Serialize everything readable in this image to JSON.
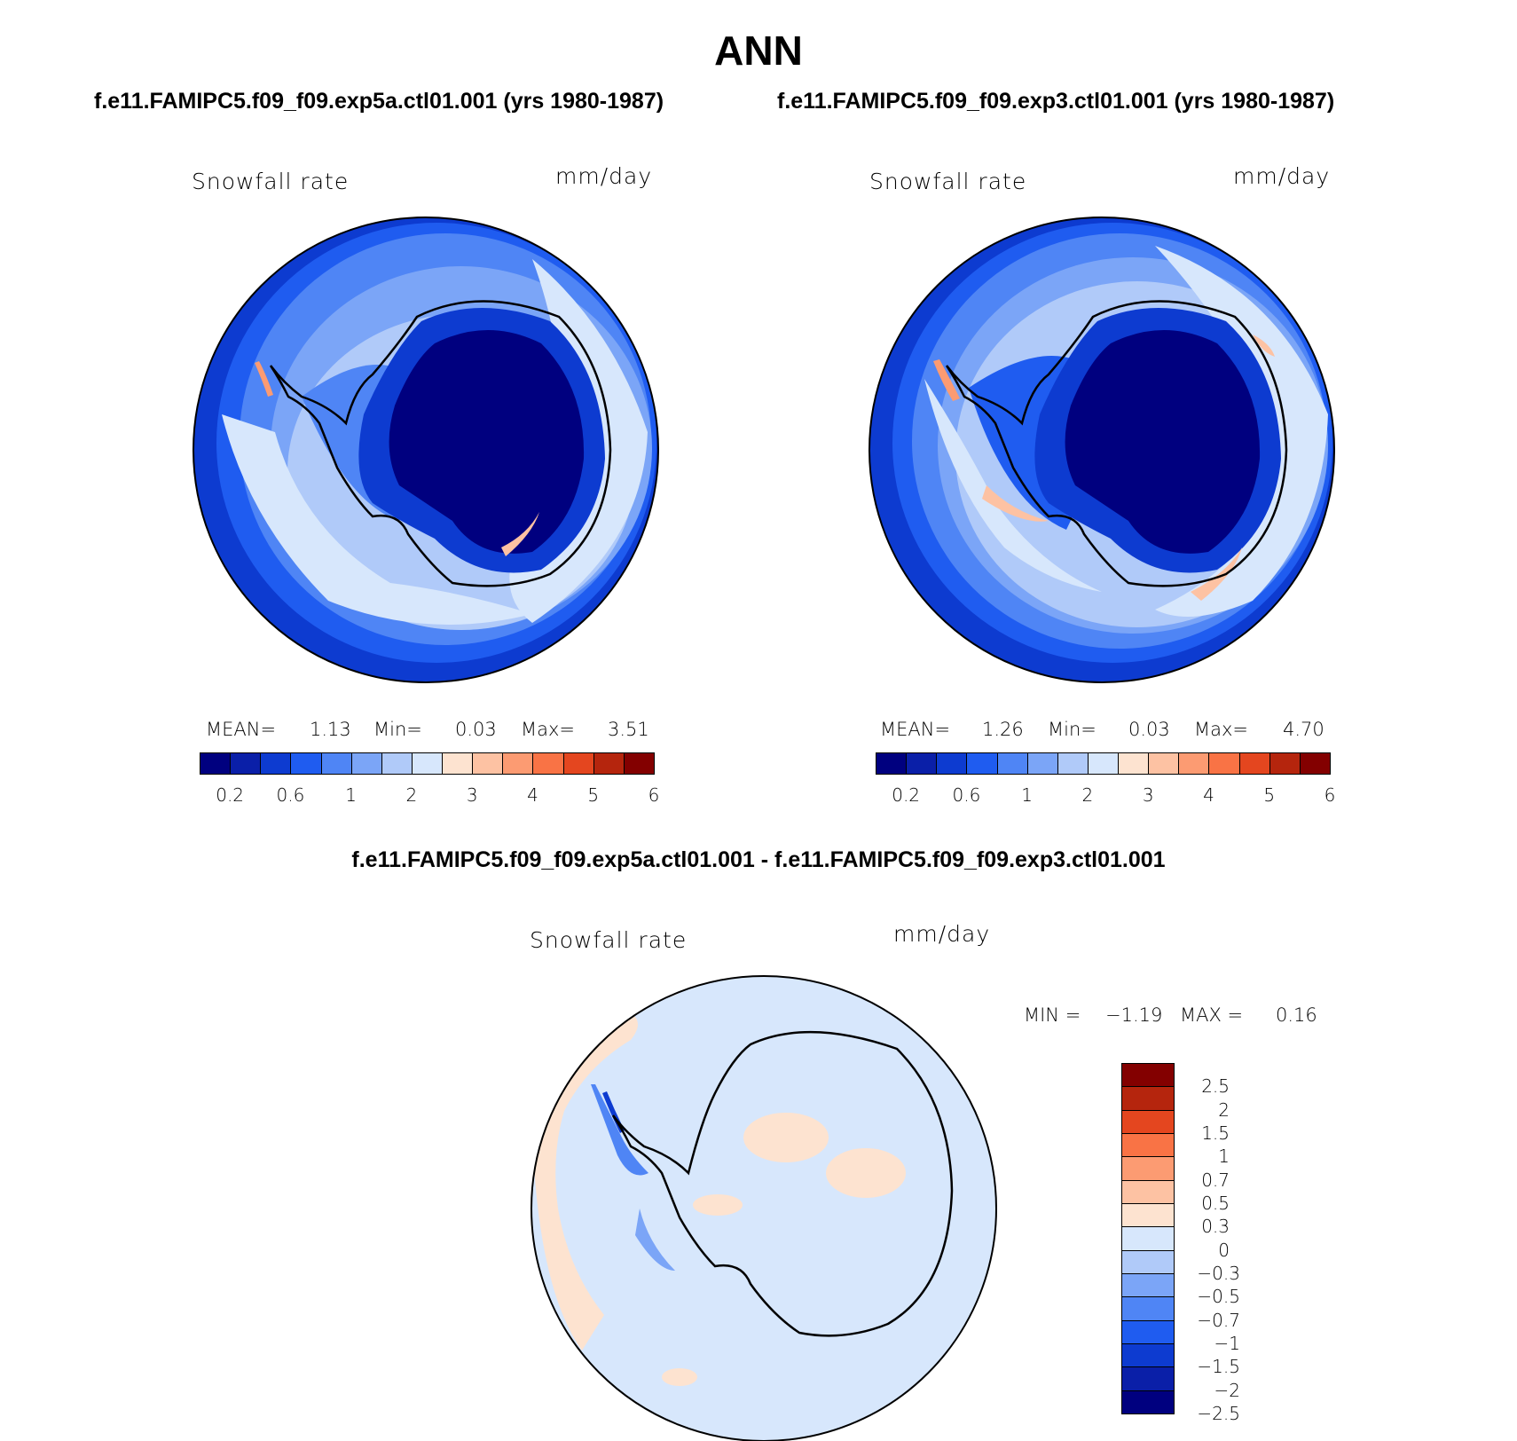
{
  "title": "ANN",
  "panels": [
    {
      "case_title": "f.e11.FAMIPC5.f09_f09.exp5a.ctl01.001 (yrs 1980-1987)",
      "variable": "Snowfall rate",
      "units": "mm/day",
      "mean_label": "MEAN=",
      "mean": "1.13",
      "min_label": "Min=",
      "min": "0.03",
      "max_label": "Max=",
      "max": "3.51"
    },
    {
      "case_title": "f.e11.FAMIPC5.f09_f09.exp3.ctl01.001 (yrs 1980-1987)",
      "variable": "Snowfall rate",
      "units": "mm/day",
      "mean_label": "MEAN=",
      "mean": "1.26",
      "min_label": "Min=",
      "min": "0.03",
      "max_label": "Max=",
      "max": "4.70"
    }
  ],
  "diff": {
    "title": "f.e11.FAMIPC5.f09_f09.exp5a.ctl01.001 - f.e11.FAMIPC5.f09_f09.exp3.ctl01.001",
    "variable": "Snowfall rate",
    "units": "mm/day",
    "min_label": "MIN =",
    "min": "−1.19",
    "max_label": "MAX =",
    "max": "0.16"
  },
  "colorbar": {
    "colors": [
      "#00007f",
      "#0a1fa8",
      "#0d3bd0",
      "#1f5cf0",
      "#4f85f5",
      "#7ba5f7",
      "#b0caf9",
      "#d7e7fc",
      "#fde3d0",
      "#fdc2a3",
      "#fc9b72",
      "#f97345",
      "#e4461f",
      "#b5250d",
      "#830000"
    ],
    "ticks": [
      "0.2",
      "0.6",
      "1",
      "2",
      "3",
      "4",
      "5",
      "6"
    ]
  },
  "diff_colorbar": {
    "colors": [
      "#830000",
      "#b5250d",
      "#e4461f",
      "#f97345",
      "#fc9b72",
      "#fdc2a3",
      "#fde3d0",
      "#d7e7fc",
      "#b0caf9",
      "#7ba5f7",
      "#4f85f5",
      "#1f5cf0",
      "#0d3bd0",
      "#0a1fa8",
      "#00007f"
    ],
    "ticks": [
      "2.5",
      "2",
      "1.5",
      "1",
      "0.7",
      "0.5",
      "0.3",
      "0",
      "−0.3",
      "−0.5",
      "−0.7",
      "−1",
      "−1.5",
      "−2",
      "−2.5"
    ]
  }
}
